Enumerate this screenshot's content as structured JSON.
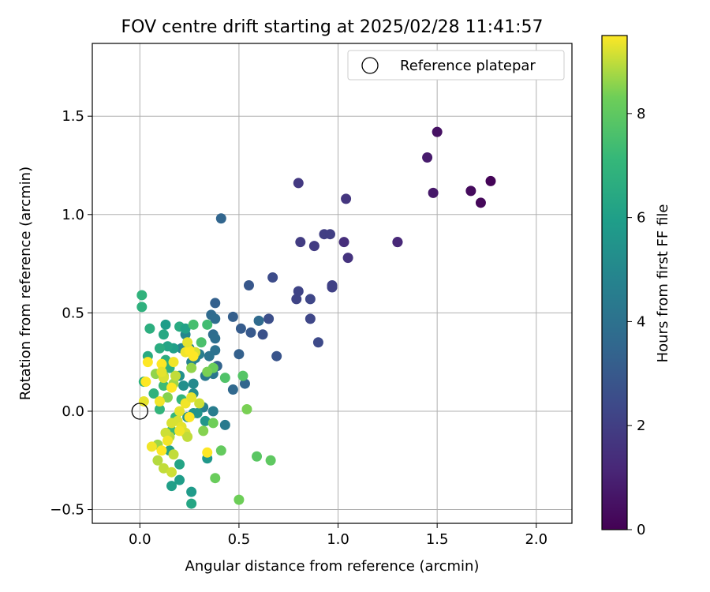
{
  "chart_data": {
    "type": "scatter",
    "title": "FOV centre drift starting at 2025/02/28 11:41:57",
    "xlabel": "Angular distance from reference (arcmin)",
    "ylabel": "Rotation from reference (arcmin)",
    "xlim": [
      -0.24,
      2.18
    ],
    "ylim": [
      -0.57,
      1.87
    ],
    "xticks": [
      0.0,
      0.5,
      1.0,
      1.5,
      2.0
    ],
    "xtick_labels": [
      "0.0",
      "0.5",
      "1.0",
      "1.5",
      "2.0"
    ],
    "yticks": [
      -0.5,
      0.0,
      0.5,
      1.0,
      1.5
    ],
    "ytick_labels": [
      "−0.5",
      "0.0",
      "0.5",
      "1.0",
      "1.5"
    ],
    "grid": true,
    "legend": {
      "position": "top-right",
      "label": "Reference platepar",
      "marker": "open-circle"
    },
    "reference_point": {
      "x": 0.0,
      "y": 0.0
    },
    "colorbar": {
      "label": "Hours from first FF file",
      "colormap": "viridis",
      "range": [
        0,
        9.5
      ],
      "ticks": [
        0,
        2,
        4,
        6,
        8
      ],
      "tick_labels": [
        "0",
        "2",
        "4",
        "6",
        "8"
      ]
    },
    "points": [
      {
        "x": 1.77,
        "y": 1.17,
        "h": 0.1
      },
      {
        "x": 1.67,
        "y": 1.12,
        "h": 0.3
      },
      {
        "x": 1.72,
        "y": 1.06,
        "h": 0.2
      },
      {
        "x": 1.5,
        "y": 1.42,
        "h": 0.5
      },
      {
        "x": 1.45,
        "y": 1.29,
        "h": 0.8
      },
      {
        "x": 1.48,
        "y": 1.11,
        "h": 0.7
      },
      {
        "x": 1.3,
        "y": 0.86,
        "h": 1.2
      },
      {
        "x": 1.3,
        "y": 0.86,
        "h": 1.2
      },
      {
        "x": 1.03,
        "y": 0.86,
        "h": 1.4
      },
      {
        "x": 1.05,
        "y": 0.78,
        "h": 1.6
      },
      {
        "x": 1.04,
        "y": 1.08,
        "h": 1.7
      },
      {
        "x": 0.8,
        "y": 1.16,
        "h": 1.8
      },
      {
        "x": 0.81,
        "y": 0.86,
        "h": 1.9
      },
      {
        "x": 0.88,
        "y": 0.84,
        "h": 1.9
      },
      {
        "x": 0.93,
        "y": 0.9,
        "h": 2.0
      },
      {
        "x": 0.96,
        "y": 0.9,
        "h": 2.0
      },
      {
        "x": 0.97,
        "y": 0.64,
        "h": 2.1
      },
      {
        "x": 0.97,
        "y": 0.63,
        "h": 2.1
      },
      {
        "x": 0.8,
        "y": 0.61,
        "h": 2.2
      },
      {
        "x": 0.79,
        "y": 0.57,
        "h": 2.2
      },
      {
        "x": 0.86,
        "y": 0.57,
        "h": 2.3
      },
      {
        "x": 0.86,
        "y": 0.47,
        "h": 2.3
      },
      {
        "x": 0.9,
        "y": 0.35,
        "h": 2.4
      },
      {
        "x": 0.67,
        "y": 0.68,
        "h": 2.5
      },
      {
        "x": 0.65,
        "y": 0.47,
        "h": 2.6
      },
      {
        "x": 0.62,
        "y": 0.39,
        "h": 2.7
      },
      {
        "x": 0.69,
        "y": 0.28,
        "h": 2.8
      },
      {
        "x": 0.55,
        "y": 0.64,
        "h": 2.9
      },
      {
        "x": 0.56,
        "y": 0.4,
        "h": 3.0
      },
      {
        "x": 0.51,
        "y": 0.42,
        "h": 3.1
      },
      {
        "x": 0.47,
        "y": 0.48,
        "h": 3.2
      },
      {
        "x": 0.5,
        "y": 0.29,
        "h": 3.3
      },
      {
        "x": 0.41,
        "y": 0.98,
        "h": 3.5
      },
      {
        "x": 0.38,
        "y": 0.55,
        "h": 3.3
      },
      {
        "x": 0.39,
        "y": 0.23,
        "h": 3.4
      },
      {
        "x": 0.53,
        "y": 0.14,
        "h": 3.5
      },
      {
        "x": 0.47,
        "y": 0.11,
        "h": 3.6
      },
      {
        "x": 0.6,
        "y": 0.46,
        "h": 3.7
      },
      {
        "x": 0.36,
        "y": 0.49,
        "h": 3.7
      },
      {
        "x": 0.38,
        "y": 0.47,
        "h": 3.8
      },
      {
        "x": 0.37,
        "y": 0.39,
        "h": 3.8
      },
      {
        "x": 0.38,
        "y": 0.37,
        "h": 3.9
      },
      {
        "x": 0.38,
        "y": 0.31,
        "h": 4.0
      },
      {
        "x": 0.35,
        "y": 0.28,
        "h": 4.1
      },
      {
        "x": 0.37,
        "y": 0.19,
        "h": 4.2
      },
      {
        "x": 0.33,
        "y": 0.18,
        "h": 4.3
      },
      {
        "x": 0.43,
        "y": -0.07,
        "h": 4.4
      },
      {
        "x": 0.37,
        "y": 0.0,
        "h": 4.5
      },
      {
        "x": 0.32,
        "y": 0.02,
        "h": 4.6
      },
      {
        "x": 0.3,
        "y": 0.29,
        "h": 4.5
      },
      {
        "x": 0.28,
        "y": 0.27,
        "h": 4.7
      },
      {
        "x": 0.26,
        "y": 0.25,
        "h": 4.8
      },
      {
        "x": 0.25,
        "y": 0.32,
        "h": 4.8
      },
      {
        "x": 0.23,
        "y": 0.39,
        "h": 4.9
      },
      {
        "x": 0.21,
        "y": 0.32,
        "h": 5.0
      },
      {
        "x": 0.27,
        "y": 0.14,
        "h": 5.1
      },
      {
        "x": 0.27,
        "y": 0.09,
        "h": 5.2
      },
      {
        "x": 0.22,
        "y": 0.13,
        "h": 5.3
      },
      {
        "x": 0.2,
        "y": 0.18,
        "h": 5.4
      },
      {
        "x": 0.24,
        "y": -0.03,
        "h": 5.5
      },
      {
        "x": 0.27,
        "y": -0.01,
        "h": 5.6
      },
      {
        "x": 0.29,
        "y": -0.01,
        "h": 5.5
      },
      {
        "x": 0.33,
        "y": -0.05,
        "h": 5.6
      },
      {
        "x": 0.34,
        "y": -0.24,
        "h": 5.7
      },
      {
        "x": 0.26,
        "y": -0.41,
        "h": 5.8
      },
      {
        "x": 0.2,
        "y": -0.35,
        "h": 5.9
      },
      {
        "x": 0.16,
        "y": -0.38,
        "h": 6.0
      },
      {
        "x": 0.15,
        "y": -0.2,
        "h": 6.1
      },
      {
        "x": 0.2,
        "y": -0.27,
        "h": 6.2
      },
      {
        "x": 0.26,
        "y": -0.47,
        "h": 6.3
      },
      {
        "x": 0.17,
        "y": 0.32,
        "h": 6.0
      },
      {
        "x": 0.13,
        "y": 0.44,
        "h": 5.9
      },
      {
        "x": 0.14,
        "y": 0.33,
        "h": 6.2
      },
      {
        "x": 0.12,
        "y": 0.39,
        "h": 6.4
      },
      {
        "x": 0.2,
        "y": 0.43,
        "h": 6.5
      },
      {
        "x": 0.23,
        "y": 0.42,
        "h": 6.1
      },
      {
        "x": 0.1,
        "y": 0.32,
        "h": 6.6
      },
      {
        "x": 0.05,
        "y": 0.42,
        "h": 6.7
      },
      {
        "x": 0.04,
        "y": 0.28,
        "h": 6.5
      },
      {
        "x": 0.02,
        "y": 0.15,
        "h": 6.8
      },
      {
        "x": 0.01,
        "y": 0.59,
        "h": 6.9
      },
      {
        "x": 0.01,
        "y": 0.53,
        "h": 6.8
      },
      {
        "x": 0.13,
        "y": 0.26,
        "h": 6.6
      },
      {
        "x": 0.15,
        "y": 0.22,
        "h": 6.7
      },
      {
        "x": 0.07,
        "y": 0.09,
        "h": 6.9
      },
      {
        "x": 0.1,
        "y": 0.01,
        "h": 7.0
      },
      {
        "x": 0.18,
        "y": -0.03,
        "h": 7.1
      },
      {
        "x": 0.16,
        "y": -0.1,
        "h": 7.2
      },
      {
        "x": 0.21,
        "y": 0.06,
        "h": 7.0
      },
      {
        "x": 0.12,
        "y": 0.13,
        "h": 7.3
      },
      {
        "x": 0.34,
        "y": 0.44,
        "h": 7.4
      },
      {
        "x": 0.27,
        "y": 0.44,
        "h": 7.5
      },
      {
        "x": 0.31,
        "y": 0.35,
        "h": 7.6
      },
      {
        "x": 0.43,
        "y": 0.17,
        "h": 7.7
      },
      {
        "x": 0.52,
        "y": 0.18,
        "h": 7.8
      },
      {
        "x": 0.59,
        "y": -0.23,
        "h": 7.9
      },
      {
        "x": 0.66,
        "y": -0.25,
        "h": 8.0
      },
      {
        "x": 0.41,
        "y": -0.2,
        "h": 8.1
      },
      {
        "x": 0.38,
        "y": -0.34,
        "h": 8.2
      },
      {
        "x": 0.5,
        "y": -0.45,
        "h": 8.3
      },
      {
        "x": 0.54,
        "y": 0.01,
        "h": 8.4
      },
      {
        "x": 0.37,
        "y": -0.06,
        "h": 8.3
      },
      {
        "x": 0.32,
        "y": -0.1,
        "h": 8.5
      },
      {
        "x": 0.37,
        "y": 0.22,
        "h": 8.2
      },
      {
        "x": 0.34,
        "y": 0.2,
        "h": 8.4
      },
      {
        "x": 0.26,
        "y": 0.22,
        "h": 8.6
      },
      {
        "x": 0.17,
        "y": 0.14,
        "h": 8.7
      },
      {
        "x": 0.14,
        "y": 0.07,
        "h": 8.5
      },
      {
        "x": 0.12,
        "y": 0.18,
        "h": 8.8
      },
      {
        "x": 0.08,
        "y": 0.19,
        "h": 8.6
      },
      {
        "x": 0.09,
        "y": -0.17,
        "h": 8.7
      },
      {
        "x": 0.09,
        "y": -0.25,
        "h": 8.9
      },
      {
        "x": 0.12,
        "y": -0.29,
        "h": 9.0
      },
      {
        "x": 0.16,
        "y": -0.31,
        "h": 9.1
      },
      {
        "x": 0.17,
        "y": -0.22,
        "h": 9.0
      },
      {
        "x": 0.15,
        "y": -0.13,
        "h": 8.9
      },
      {
        "x": 0.13,
        "y": -0.11,
        "h": 9.1
      },
      {
        "x": 0.19,
        "y": -0.05,
        "h": 9.2
      },
      {
        "x": 0.21,
        "y": -0.08,
        "h": 9.3
      },
      {
        "x": 0.23,
        "y": -0.11,
        "h": 9.2
      },
      {
        "x": 0.24,
        "y": -0.13,
        "h": 9.0
      },
      {
        "x": 0.2,
        "y": 0.0,
        "h": 9.3
      },
      {
        "x": 0.23,
        "y": 0.04,
        "h": 9.4
      },
      {
        "x": 0.3,
        "y": 0.04,
        "h": 9.1
      },
      {
        "x": 0.26,
        "y": 0.07,
        "h": 9.3
      },
      {
        "x": 0.23,
        "y": 0.3,
        "h": 9.4
      },
      {
        "x": 0.28,
        "y": 0.3,
        "h": 9.2
      },
      {
        "x": 0.27,
        "y": 0.28,
        "h": 9.5
      },
      {
        "x": 0.25,
        "y": 0.31,
        "h": 9.5
      },
      {
        "x": 0.24,
        "y": 0.35,
        "h": 9.3
      },
      {
        "x": 0.17,
        "y": 0.25,
        "h": 9.4
      },
      {
        "x": 0.11,
        "y": 0.24,
        "h": 9.5
      },
      {
        "x": 0.12,
        "y": 0.17,
        "h": 9.2
      },
      {
        "x": 0.11,
        "y": 0.2,
        "h": 9.3
      },
      {
        "x": 0.16,
        "y": 0.12,
        "h": 9.5
      },
      {
        "x": 0.1,
        "y": 0.05,
        "h": 9.4
      },
      {
        "x": 0.03,
        "y": 0.15,
        "h": 9.5
      },
      {
        "x": 0.04,
        "y": 0.25,
        "h": 9.5
      },
      {
        "x": 0.02,
        "y": 0.05,
        "h": 9.3
      },
      {
        "x": 0.06,
        "y": -0.18,
        "h": 9.4
      },
      {
        "x": 0.11,
        "y": -0.2,
        "h": 9.5
      },
      {
        "x": 0.14,
        "y": -0.15,
        "h": 9.4
      },
      {
        "x": 0.16,
        "y": -0.06,
        "h": 9.2
      },
      {
        "x": 0.34,
        "y": -0.21,
        "h": 9.5
      },
      {
        "x": 0.2,
        "y": -0.1,
        "h": 9.4
      },
      {
        "x": 0.25,
        "y": -0.03,
        "h": 9.5
      },
      {
        "x": 0.18,
        "y": 0.18,
        "h": 9.0
      }
    ]
  }
}
